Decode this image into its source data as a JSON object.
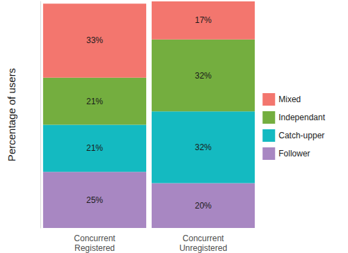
{
  "chart_data": {
    "type": "bar",
    "stacked": true,
    "data_labels": true,
    "tick_labels": false,
    "grid": false,
    "legend": "right",
    "ylabel": "Percentage of users",
    "categories": [
      "Concurrent\nRegistered",
      "Concurrent\nUnregistered"
    ],
    "ylim": [
      0,
      101
    ],
    "series": [
      {
        "name": "Follower",
        "color": "#A887C2",
        "values": [
          25,
          20
        ],
        "value_labels": [
          "25%",
          "20%"
        ]
      },
      {
        "name": "Catch-upper",
        "color": "#14BAC1",
        "values": [
          21,
          32
        ],
        "value_labels": [
          "21%",
          "32%"
        ]
      },
      {
        "name": "Independant",
        "color": "#74AE3F",
        "values": [
          21,
          32
        ],
        "value_labels": [
          "21%",
          "32%"
        ]
      },
      {
        "name": "Mixed",
        "color": "#F3766E",
        "values": [
          33,
          17
        ],
        "value_labels": [
          "33%",
          "17%"
        ]
      }
    ]
  }
}
